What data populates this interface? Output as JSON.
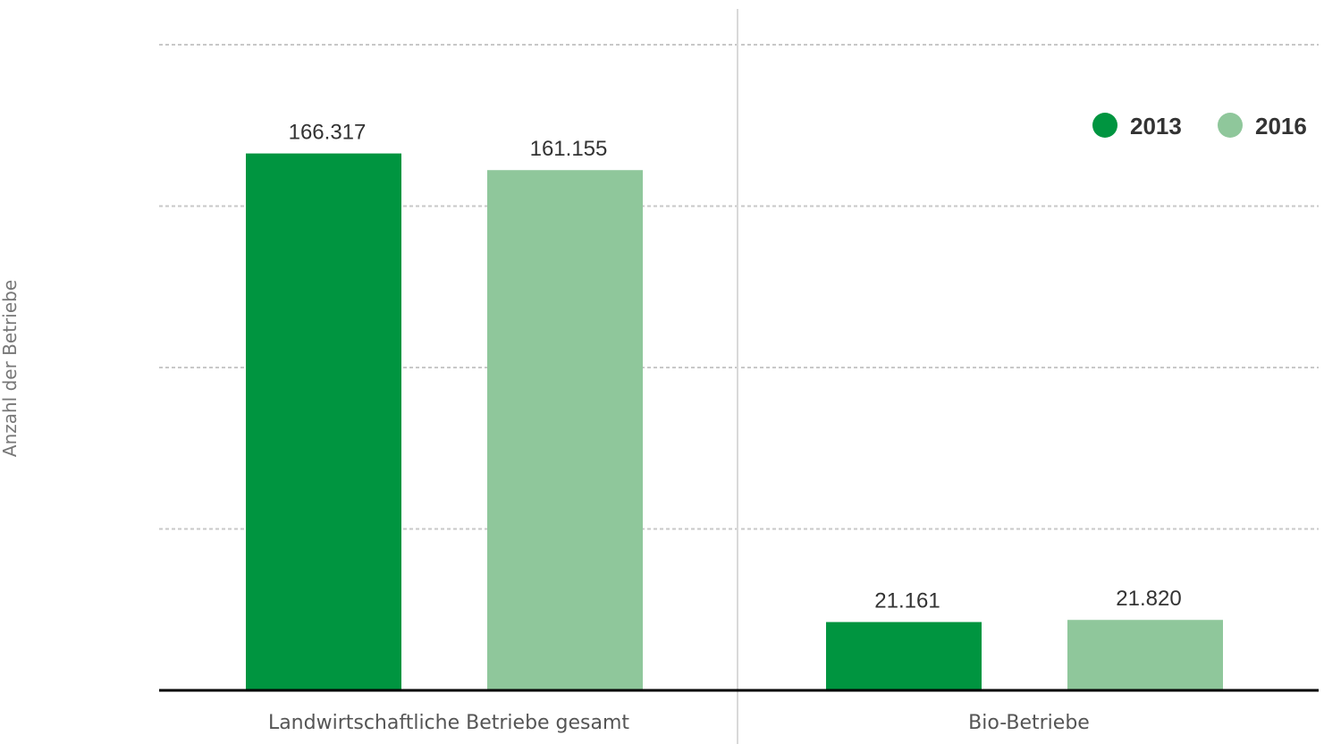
{
  "chart_data": {
    "type": "bar",
    "ylabel": "Anzahl der Betriebe",
    "xlabel": "",
    "categories": [
      "Landwirtschaftliche Betriebe gesamt",
      "Bio-Betriebe"
    ],
    "series": [
      {
        "name": "2013",
        "color": "#009540",
        "values": [
          166317,
          21161
        ],
        "labels": [
          "166.317",
          "21.161"
        ]
      },
      {
        "name": "2016",
        "color": "#8fc79b",
        "values": [
          161155,
          21820
        ],
        "labels": [
          "161.155",
          "21.820"
        ]
      }
    ],
    "ylim": [
      0,
      200000
    ],
    "grid": true,
    "legend": "top-right"
  }
}
